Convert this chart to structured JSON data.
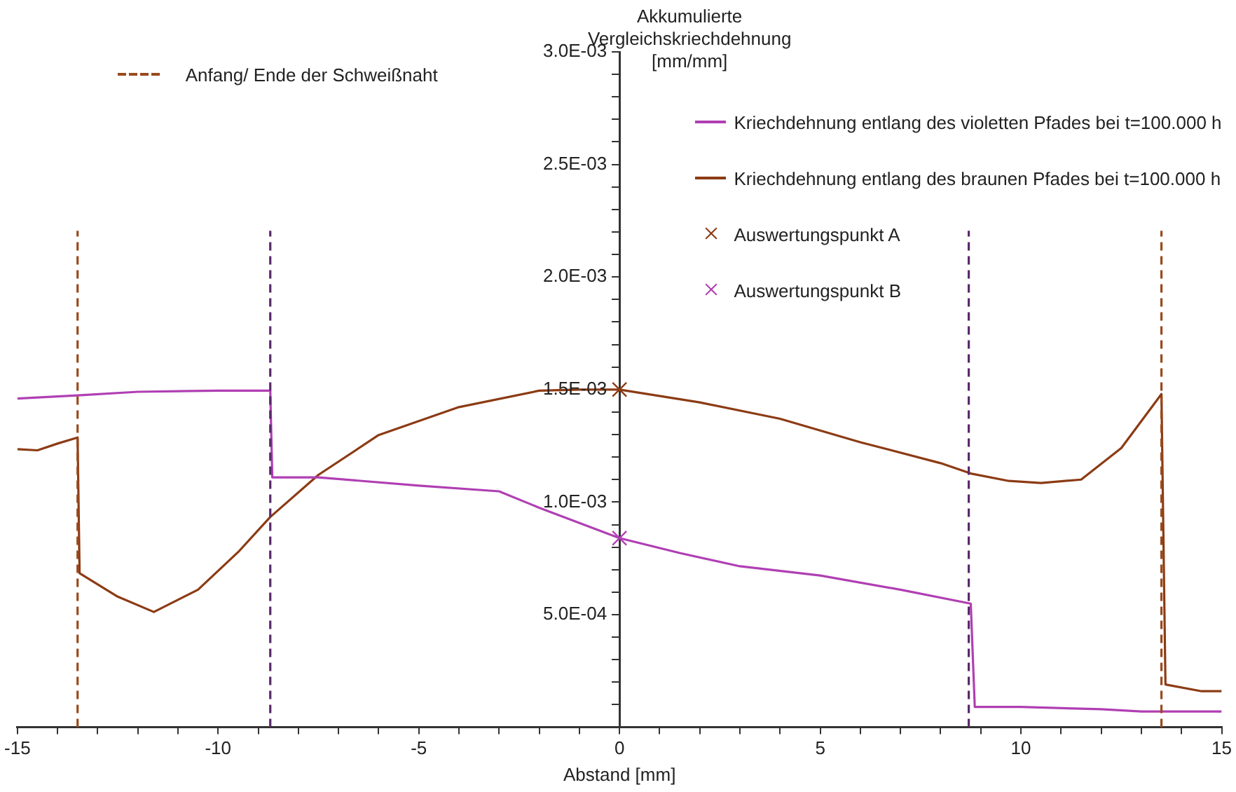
{
  "chart_data": {
    "type": "line",
    "xlabel": "Abstand [mm]",
    "ylabel": "Akkumulierte Vergleichskriechdehnung [mm/mm]",
    "xlim": [
      -15,
      15
    ],
    "xticks": [
      -15,
      {
        "value": -14,
        "label": null
      },
      {
        "value": -13,
        "label": null
      },
      {
        "value": -12,
        "label": null
      },
      {
        "value": -11,
        "label": null
      },
      -10,
      {
        "value": -9,
        "label": null
      },
      {
        "value": -8,
        "label": null
      },
      {
        "value": -7,
        "label": null
      },
      {
        "value": -6,
        "label": null
      },
      -5,
      {
        "value": -4,
        "label": null
      },
      {
        "value": -3,
        "label": null
      },
      {
        "value": -2,
        "label": null
      },
      {
        "value": -1,
        "label": null
      },
      0,
      {
        "value": 1,
        "label": null
      },
      {
        "value": 2,
        "label": null
      },
      {
        "value": 3,
        "label": null
      },
      {
        "value": 4,
        "label": null
      },
      5,
      {
        "value": 6,
        "label": null
      },
      {
        "value": 7,
        "label": null
      },
      {
        "value": 8,
        "label": null
      },
      {
        "value": 9,
        "label": null
      },
      10,
      {
        "value": 11,
        "label": null
      },
      {
        "value": 12,
        "label": null
      },
      {
        "value": 13,
        "label": null
      },
      {
        "value": 14,
        "label": null
      },
      15
    ],
    "ylim": [
      0,
      0.003
    ],
    "yticks": [
      {
        "value": 0,
        "label": null
      },
      {
        "value": 0.0001,
        "label": null
      },
      {
        "value": 0.0002,
        "label": null
      },
      {
        "value": 0.0003,
        "label": null
      },
      {
        "value": 0.0004,
        "label": null
      },
      {
        "value": 0.0005,
        "label": "5.0E-04"
      },
      {
        "value": 0.0006,
        "label": null
      },
      {
        "value": 0.0007,
        "label": null
      },
      {
        "value": 0.0008,
        "label": null
      },
      {
        "value": 0.0009,
        "label": null
      },
      {
        "value": 0.001,
        "label": "1.0E-03"
      },
      {
        "value": 0.0011,
        "label": null
      },
      {
        "value": 0.0012,
        "label": null
      },
      {
        "value": 0.0013,
        "label": null
      },
      {
        "value": 0.0014,
        "label": null
      },
      {
        "value": 0.0015,
        "label": "1.5E-03"
      },
      {
        "value": 0.0016,
        "label": null
      },
      {
        "value": 0.0017,
        "label": null
      },
      {
        "value": 0.0018,
        "label": null
      },
      {
        "value": 0.0019,
        "label": null
      },
      {
        "value": 0.002,
        "label": "2.0E-03"
      },
      {
        "value": 0.0021,
        "label": null
      },
      {
        "value": 0.0022,
        "label": null
      },
      {
        "value": 0.0023,
        "label": null
      },
      {
        "value": 0.0024,
        "label": null
      },
      {
        "value": 0.0025,
        "label": "2.5E-03"
      },
      {
        "value": 0.0026,
        "label": null
      },
      {
        "value": 0.0027,
        "label": null
      },
      {
        "value": 0.0028,
        "label": null
      },
      {
        "value": 0.0029,
        "label": null
      },
      {
        "value": 0.003,
        "label": "3.0E-03"
      }
    ],
    "grid": false,
    "legend": "top right",
    "series": [
      {
        "name": "Kriechdehnung entlang des violetten Pfades bei t=100.000 h",
        "color": "#b03fb3",
        "x": [
          -15,
          -13.5,
          -12,
          -10,
          -8.7,
          -8.65,
          -7.5,
          -5,
          -3,
          -2,
          0,
          1.5,
          3,
          5,
          7,
          8.75,
          8.85,
          10,
          12,
          13,
          14,
          15
        ],
        "values": [
          0.00146,
          0.001474,
          0.00149,
          0.001495,
          0.001495,
          0.00111,
          0.00111,
          0.001073,
          0.001048,
          0.000975,
          0.00084,
          0.000774,
          0.000715,
          0.000674,
          0.000611,
          0.000549,
          9e-05,
          9e-05,
          8e-05,
          7e-05,
          7e-05,
          7e-05
        ]
      },
      {
        "name": "Kriechdehnung entlang des braunen Pfades bei t=100.000 h",
        "color": "#8c3b14",
        "x": [
          -15,
          -14.5,
          -14,
          -13.5,
          -13.45,
          -12.5,
          -11.6,
          -10.5,
          -9.5,
          -8.7,
          -7.5,
          -6,
          -4,
          -2,
          -1,
          0,
          2,
          4,
          6,
          8,
          8.75,
          9.7,
          10.5,
          11.5,
          12.5,
          13.5,
          13.6,
          14.5,
          15
        ],
        "values": [
          0.001235,
          0.00123,
          0.00126,
          0.001287,
          0.000684,
          0.00058,
          0.000512,
          0.000611,
          0.000778,
          0.000934,
          0.001121,
          0.001298,
          0.001422,
          0.001495,
          0.0015,
          0.0015,
          0.001443,
          0.00137,
          0.001266,
          0.001173,
          0.001127,
          0.001094,
          0.001085,
          0.0011,
          0.00124,
          0.00148,
          0.00019,
          0.00016,
          0.00016
        ]
      },
      {
        "name": "Auswertungspunkt A",
        "type": "scatter",
        "marker": "cross",
        "color": "#8c3b14",
        "x": [
          0
        ],
        "values": [
          0.0015
        ]
      },
      {
        "name": "Auswertungspunkt B",
        "type": "scatter",
        "marker": "cross",
        "color": "#b03fb3",
        "x": [
          0
        ],
        "values": [
          0.00084
        ]
      }
    ],
    "ref_lines": [
      {
        "axis": "x",
        "value": -13.5,
        "label": "Anfang/ Ende der Schweißnaht",
        "color": "#9a4a1c",
        "line_style": "dashed"
      },
      {
        "axis": "x",
        "value": -8.7,
        "color": "#5a2a6a",
        "line_style": "dashed"
      },
      {
        "axis": "x",
        "value": 8.7,
        "color": "#5a2a6a",
        "line_style": "dashed"
      },
      {
        "axis": "x",
        "value": 13.5,
        "color": "#9a4a1c",
        "line_style": "dashed"
      }
    ]
  }
}
